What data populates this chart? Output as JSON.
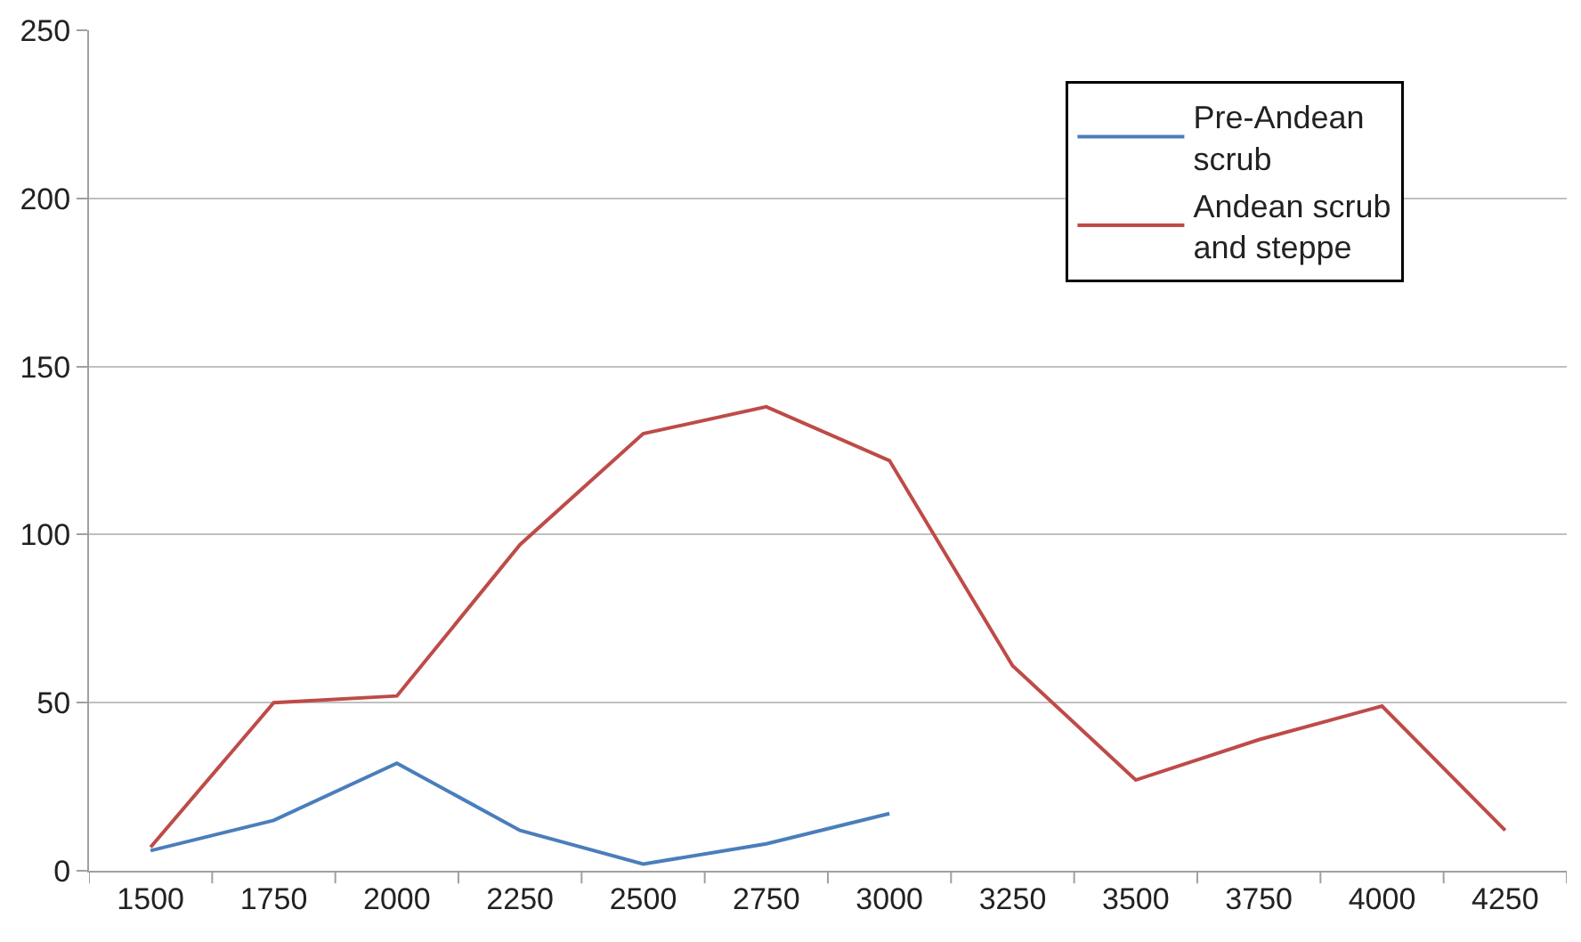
{
  "chart_data": {
    "type": "line",
    "categories": [
      "1500",
      "1750",
      "2000",
      "2250",
      "2500",
      "2750",
      "3000",
      "3250",
      "3500",
      "3750",
      "4000",
      "4250"
    ],
    "series": [
      {
        "name": "Pre-Andean scrub",
        "color": "#4a7ebb",
        "values": [
          6,
          15,
          32,
          12,
          2,
          8,
          17,
          null,
          null,
          null,
          null,
          null
        ]
      },
      {
        "name": "Andean scrub and steppe",
        "color": "#be4b48",
        "values": [
          7,
          50,
          52,
          97,
          130,
          138,
          122,
          61,
          27,
          39,
          49,
          12
        ]
      }
    ],
    "ylim": [
      0,
      250
    ],
    "yticks": [
      0,
      50,
      100,
      150,
      200,
      250
    ],
    "grid": "y",
    "legend": "top right",
    "marker": "none",
    "line_style": "solid"
  }
}
